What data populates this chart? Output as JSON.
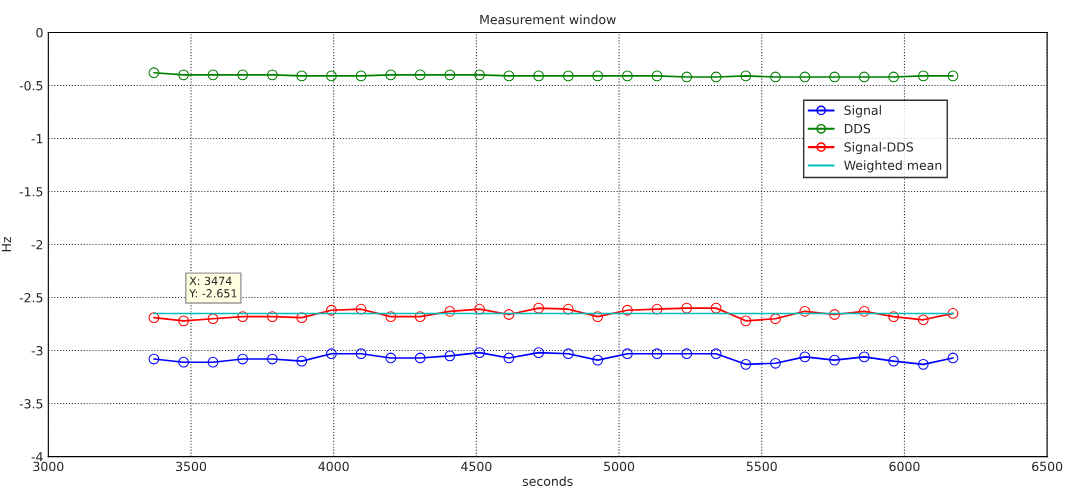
{
  "chart_data": {
    "type": "line",
    "title": "Measurement window",
    "xlabel": "seconds",
    "ylabel": "Hz",
    "x": [
      3370,
      3474,
      3577,
      3681,
      3785,
      3888,
      3992,
      4096,
      4200,
      4303,
      4407,
      4511,
      4614,
      4718,
      4822,
      4925,
      5029,
      5133,
      5237,
      5340,
      5444,
      5548,
      5651,
      5755,
      5859,
      5962,
      6066,
      6170
    ],
    "series": [
      {
        "name": "Signal",
        "color": "#0000ff",
        "marker": "circle",
        "values": [
          -3.08,
          -3.11,
          -3.11,
          -3.08,
          -3.08,
          -3.1,
          -3.03,
          -3.03,
          -3.07,
          -3.07,
          -3.05,
          -3.02,
          -3.07,
          -3.02,
          -3.03,
          -3.09,
          -3.03,
          -3.03,
          -3.03,
          -3.03,
          -3.13,
          -3.12,
          -3.06,
          -3.09,
          -3.06,
          -3.1,
          -3.13,
          -3.07
        ]
      },
      {
        "name": "DDS",
        "color": "#008000",
        "marker": "circle",
        "values": [
          -0.38,
          -0.4,
          -0.4,
          -0.4,
          -0.4,
          -0.41,
          -0.41,
          -0.41,
          -0.4,
          -0.4,
          -0.4,
          -0.4,
          -0.41,
          -0.41,
          -0.41,
          -0.41,
          -0.41,
          -0.41,
          -0.42,
          -0.42,
          -0.41,
          -0.42,
          -0.42,
          -0.42,
          -0.42,
          -0.42,
          -0.41,
          -0.41
        ]
      },
      {
        "name": "Signal-DDS",
        "color": "#ff0000",
        "marker": "circle",
        "values": [
          -2.69,
          -2.72,
          -2.7,
          -2.68,
          -2.68,
          -2.69,
          -2.62,
          -2.61,
          -2.68,
          -2.68,
          -2.63,
          -2.61,
          -2.66,
          -2.6,
          -2.61,
          -2.68,
          -2.62,
          -2.61,
          -2.6,
          -2.6,
          -2.72,
          -2.7,
          -2.63,
          -2.66,
          -2.63,
          -2.68,
          -2.71,
          -2.65
        ]
      },
      {
        "name": "Weighted mean",
        "color": "#00bfbf",
        "marker": "none",
        "x": [
          3370,
          6170
        ],
        "values": [
          -2.651,
          -2.651
        ]
      }
    ],
    "xlim": [
      3000,
      6500
    ],
    "xticks": [
      3000,
      3500,
      4000,
      4500,
      5000,
      5500,
      6000,
      6500
    ],
    "ylim": [
      -4,
      0
    ],
    "yticks": [
      -4,
      -3.5,
      -3,
      -2.5,
      -2,
      -1.5,
      -1,
      -0.5,
      0
    ],
    "grid": true,
    "line_style": "solid",
    "legend": "top right",
    "annotations": [
      {
        "text": "X: 3474\nY: -2.651",
        "x": 3474,
        "y": -2.651
      }
    ]
  }
}
